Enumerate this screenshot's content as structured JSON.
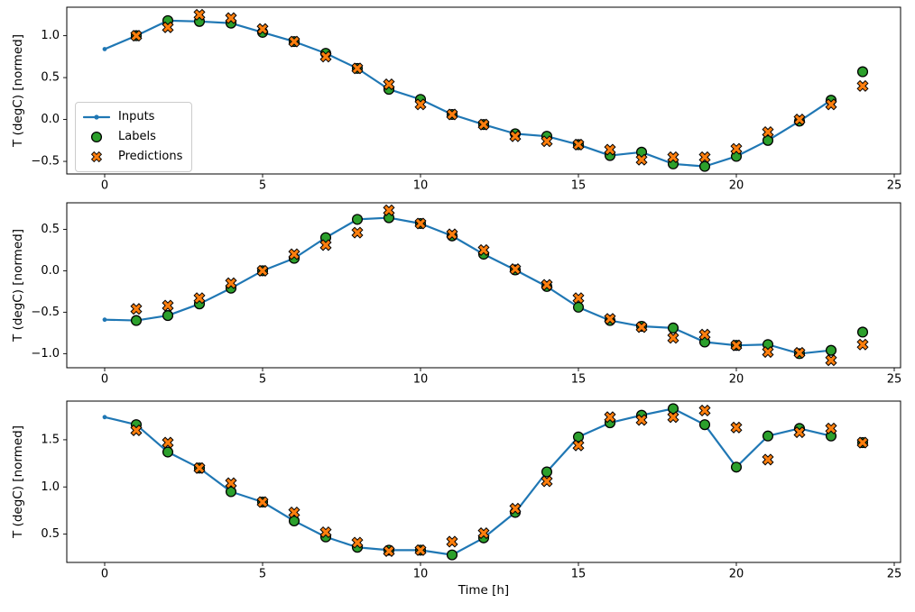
{
  "chart_data": {
    "type": "line",
    "title": "",
    "xlabel": "Time [h]",
    "ylabel": "T (degC) [normed]",
    "x_ticks": [
      0,
      5,
      10,
      15,
      20,
      25
    ],
    "xlim": [
      -1.2,
      25.2
    ],
    "grid": false,
    "colors": {
      "inputs": "#1f77b4",
      "labels": "#2ca02c",
      "predictions": "#ff7f0e",
      "marker_edge": "#000000",
      "axes": "#000000",
      "text": "#000000"
    },
    "legend": {
      "location": "center left of first subplot",
      "items": [
        {
          "label": "Inputs",
          "marker": "line-with-dot",
          "color": "#1f77b4"
        },
        {
          "label": "Labels",
          "marker": "circle",
          "color": "#2ca02c"
        },
        {
          "label": "Predictions",
          "marker": "x",
          "color": "#ff7f0e"
        }
      ]
    },
    "subplots": [
      {
        "ylabel": "T (degC) [normed]",
        "y_ticks": [
          -0.5,
          0.0,
          0.5,
          1.0
        ],
        "ylim": [
          -0.65,
          1.34
        ],
        "series": {
          "inputs": {
            "x": [
              0,
              1,
              2,
              3,
              4,
              5,
              6,
              7,
              8,
              9,
              10,
              11,
              12,
              13,
              14,
              15,
              16,
              17,
              18,
              19,
              20,
              21,
              22,
              23
            ],
            "y": [
              0.84,
              1.0,
              1.18,
              1.17,
              1.15,
              1.04,
              0.93,
              0.79,
              0.61,
              0.36,
              0.24,
              0.06,
              -0.06,
              -0.17,
              -0.2,
              -0.3,
              -0.43,
              -0.39,
              -0.53,
              -0.56,
              -0.44,
              -0.25,
              -0.02,
              0.23
            ]
          },
          "labels": {
            "x": [
              1,
              2,
              3,
              4,
              5,
              6,
              7,
              8,
              9,
              10,
              11,
              12,
              13,
              14,
              15,
              16,
              17,
              18,
              19,
              20,
              21,
              22,
              23,
              24
            ],
            "y": [
              1.0,
              1.18,
              1.17,
              1.15,
              1.04,
              0.93,
              0.79,
              0.61,
              0.36,
              0.24,
              0.06,
              -0.06,
              -0.17,
              -0.2,
              -0.3,
              -0.43,
              -0.39,
              -0.53,
              -0.56,
              -0.44,
              -0.25,
              -0.02,
              0.23,
              0.57
            ]
          },
          "predictions": {
            "x": [
              1,
              2,
              3,
              4,
              5,
              6,
              7,
              8,
              9,
              10,
              11,
              12,
              13,
              14,
              15,
              16,
              17,
              18,
              19,
              20,
              21,
              22,
              23,
              24
            ],
            "y": [
              1.0,
              1.1,
              1.25,
              1.21,
              1.08,
              0.93,
              0.75,
              0.61,
              0.42,
              0.18,
              0.06,
              -0.06,
              -0.2,
              -0.26,
              -0.3,
              -0.36,
              -0.48,
              -0.45,
              -0.45,
              -0.35,
              -0.15,
              0.0,
              0.18,
              0.4
            ]
          }
        }
      },
      {
        "ylabel": "T (degC) [normed]",
        "y_ticks": [
          -1.0,
          -0.5,
          0.0,
          0.5
        ],
        "ylim": [
          -1.17,
          0.82
        ],
        "series": {
          "inputs": {
            "x": [
              0,
              1,
              2,
              3,
              4,
              5,
              6,
              7,
              8,
              9,
              10,
              11,
              12,
              13,
              14,
              15,
              16,
              17,
              18,
              19,
              20,
              21,
              22,
              23
            ],
            "y": [
              -0.59,
              -0.6,
              -0.54,
              -0.4,
              -0.21,
              0.0,
              0.15,
              0.4,
              0.62,
              0.64,
              0.57,
              0.42,
              0.2,
              0.01,
              -0.19,
              -0.44,
              -0.6,
              -0.67,
              -0.69,
              -0.86,
              -0.9,
              -0.89,
              -1.0,
              -0.96
            ]
          },
          "labels": {
            "x": [
              1,
              2,
              3,
              4,
              5,
              6,
              7,
              8,
              9,
              10,
              11,
              12,
              13,
              14,
              15,
              16,
              17,
              18,
              19,
              20,
              21,
              22,
              23,
              24
            ],
            "y": [
              -0.6,
              -0.54,
              -0.4,
              -0.21,
              0.0,
              0.15,
              0.4,
              0.62,
              0.64,
              0.57,
              0.42,
              0.2,
              0.01,
              -0.19,
              -0.44,
              -0.6,
              -0.67,
              -0.69,
              -0.86,
              -0.9,
              -0.89,
              -1.0,
              -0.96,
              -0.74
            ]
          },
          "predictions": {
            "x": [
              1,
              2,
              3,
              4,
              5,
              6,
              7,
              8,
              9,
              10,
              11,
              12,
              13,
              14,
              15,
              16,
              17,
              18,
              19,
              20,
              21,
              22,
              23,
              24
            ],
            "y": [
              -0.46,
              -0.42,
              -0.33,
              -0.15,
              0.0,
              0.2,
              0.31,
              0.46,
              0.73,
              0.57,
              0.44,
              0.25,
              0.02,
              -0.17,
              -0.33,
              -0.58,
              -0.68,
              -0.81,
              -0.77,
              -0.9,
              -0.98,
              -0.99,
              -1.08,
              -0.89
            ]
          }
        }
      },
      {
        "ylabel": "T (degC) [normed]",
        "y_ticks": [
          0.5,
          1.0,
          1.5
        ],
        "ylim": [
          0.2,
          1.91
        ],
        "series": {
          "inputs": {
            "x": [
              0,
              1,
              2,
              3,
              4,
              5,
              6,
              7,
              8,
              9,
              10,
              11,
              12,
              13,
              14,
              15,
              16,
              17,
              18,
              19,
              20,
              21,
              22,
              23
            ],
            "y": [
              1.74,
              1.66,
              1.37,
              1.2,
              0.95,
              0.84,
              0.64,
              0.47,
              0.36,
              0.33,
              0.33,
              0.28,
              0.46,
              0.73,
              1.16,
              1.53,
              1.68,
              1.76,
              1.83,
              1.66,
              1.21,
              1.54,
              1.62,
              1.54
            ]
          },
          "labels": {
            "x": [
              1,
              2,
              3,
              4,
              5,
              6,
              7,
              8,
              9,
              10,
              11,
              12,
              13,
              14,
              15,
              16,
              17,
              18,
              19,
              20,
              21,
              22,
              23,
              24
            ],
            "y": [
              1.66,
              1.37,
              1.2,
              0.95,
              0.84,
              0.64,
              0.47,
              0.36,
              0.33,
              0.33,
              0.28,
              0.46,
              0.73,
              1.16,
              1.53,
              1.68,
              1.76,
              1.83,
              1.66,
              1.21,
              1.54,
              1.62,
              1.54,
              1.47
            ]
          },
          "predictions": {
            "x": [
              1,
              2,
              3,
              4,
              5,
              6,
              7,
              8,
              9,
              10,
              11,
              12,
              13,
              14,
              15,
              16,
              17,
              18,
              19,
              20,
              21,
              22,
              23,
              24
            ],
            "y": [
              1.6,
              1.47,
              1.2,
              1.04,
              0.84,
              0.73,
              0.52,
              0.41,
              0.32,
              0.33,
              0.42,
              0.51,
              0.77,
              1.06,
              1.44,
              1.74,
              1.71,
              1.74,
              1.81,
              1.63,
              1.29,
              1.58,
              1.62,
              1.47
            ]
          }
        }
      }
    ]
  }
}
